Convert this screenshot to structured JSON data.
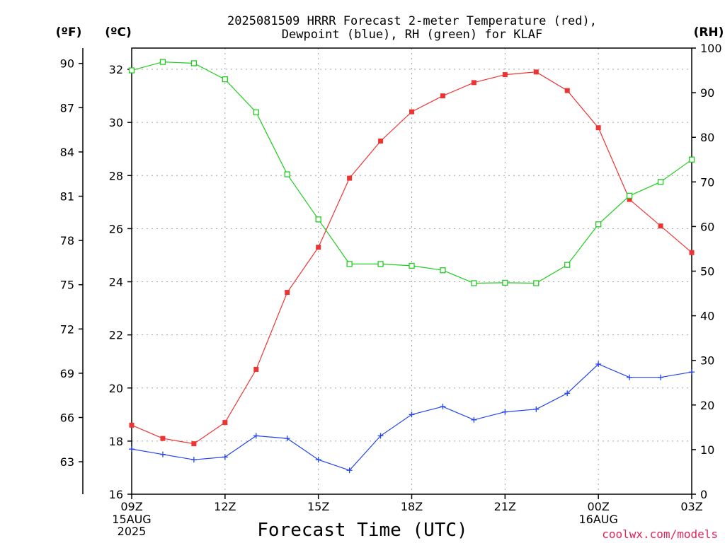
{
  "chart_data": {
    "type": "line",
    "title": [
      "2025081509 HRRR Forecast 2-meter Temperature (red),",
      "Dewpoint (blue), RH (green) for KLAF"
    ],
    "xlabel": "Forecast Time (UTC)",
    "left_unit_f": "(ºF)",
    "left_unit_c": "(ºC)",
    "right_unit": "(RH)",
    "credit": "coolwx.com/models",
    "x_hours": [
      0,
      1,
      2,
      3,
      4,
      5,
      6,
      7,
      8,
      9,
      10,
      11,
      12,
      13,
      14,
      15,
      16,
      17,
      18
    ],
    "xlim": [
      0,
      18
    ],
    "x_ticks": [
      {
        "hour": 0,
        "label": "09Z",
        "sub": [
          "15AUG",
          "2025"
        ]
      },
      {
        "hour": 3,
        "label": "12Z",
        "sub": []
      },
      {
        "hour": 6,
        "label": "15Z",
        "sub": []
      },
      {
        "hour": 9,
        "label": "18Z",
        "sub": []
      },
      {
        "hour": 12,
        "label": "21Z",
        "sub": []
      },
      {
        "hour": 15,
        "label": "00Z",
        "sub": [
          "16AUG"
        ]
      },
      {
        "hour": 18,
        "label": "03Z",
        "sub": []
      }
    ],
    "celsius_axis": {
      "ylim": [
        16,
        32.8
      ],
      "ticks": [
        16,
        18,
        20,
        22,
        24,
        26,
        28,
        30,
        32
      ]
    },
    "fahrenheit_axis": {
      "ticks": [
        63,
        66,
        69,
        72,
        75,
        78,
        81,
        84,
        87,
        90
      ]
    },
    "rh_axis": {
      "ylim": [
        0,
        100
      ],
      "ticks": [
        0,
        10,
        20,
        30,
        40,
        50,
        60,
        70,
        80,
        90,
        100
      ]
    },
    "series": [
      {
        "name": "Temperature",
        "axis": "celsius",
        "color": "#ee3333",
        "marker": "filled-square",
        "values": [
          18.6,
          18.1,
          17.9,
          18.7,
          20.7,
          23.6,
          25.3,
          27.9,
          29.3,
          30.4,
          31.0,
          31.5,
          31.8,
          31.9,
          31.2,
          29.8,
          27.1,
          26.1,
          25.1
        ]
      },
      {
        "name": "Dewpoint",
        "axis": "celsius",
        "color": "#2244ee",
        "marker": "plus",
        "values": [
          17.7,
          17.5,
          17.3,
          17.4,
          18.2,
          18.1,
          17.3,
          16.9,
          18.2,
          19.0,
          19.3,
          18.8,
          19.1,
          19.2,
          19.8,
          20.9,
          20.4,
          20.4,
          20.6
        ]
      },
      {
        "name": "RH",
        "axis": "rh",
        "color": "#22cc22",
        "marker": "open-square",
        "values": [
          95.0,
          96.9,
          96.6,
          93.0,
          85.6,
          71.7,
          61.6,
          51.6,
          51.6,
          51.2,
          50.2,
          47.3,
          47.4,
          47.3,
          51.4,
          60.5,
          66.9,
          70.0,
          75.0
        ]
      }
    ]
  }
}
